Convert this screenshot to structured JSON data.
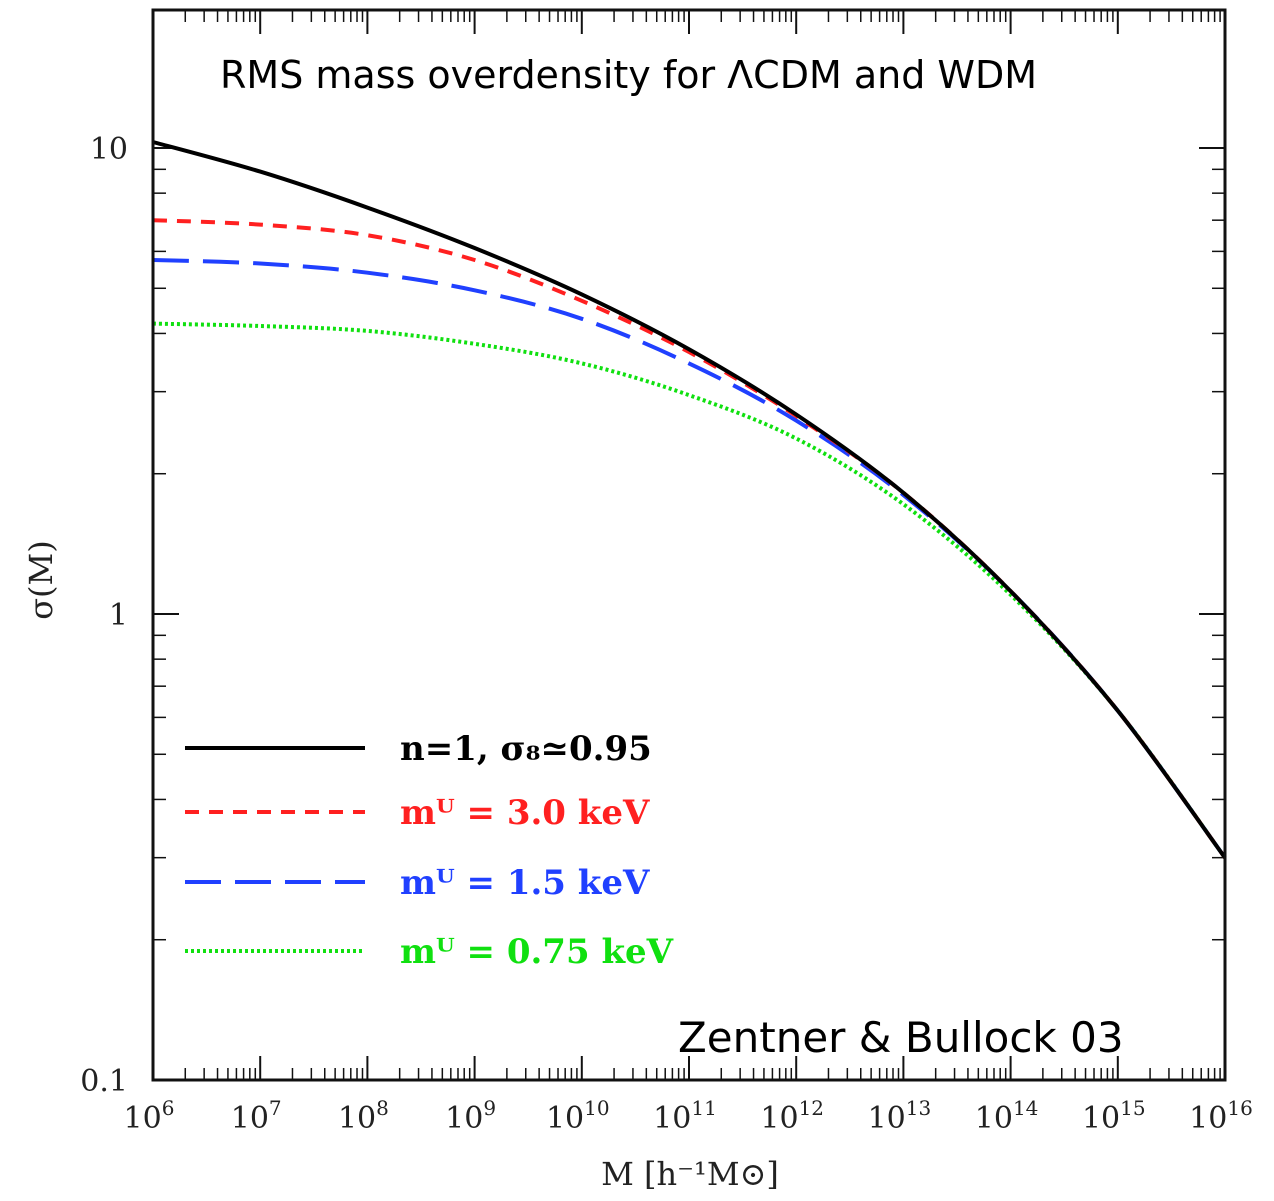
{
  "chart_data": {
    "type": "line",
    "title": "RMS mass overdensity  for ΛCDM and WDM",
    "annotation": "Zentner & Bullock 03",
    "xlabel": "M   [h⁻¹M⊙]",
    "ylabel": "σ(M)",
    "x_scale": "log",
    "y_scale": "log",
    "xlim": [
      1000000.0,
      1e+16
    ],
    "ylim": [
      0.1,
      20
    ],
    "x_ticks": [
      {
        "value": 1000000.0,
        "base": "10",
        "exp": "6"
      },
      {
        "value": 10000000.0,
        "base": "10",
        "exp": "7"
      },
      {
        "value": 100000000.0,
        "base": "10",
        "exp": "8"
      },
      {
        "value": 1000000000.0,
        "base": "10",
        "exp": "9"
      },
      {
        "value": 10000000000.0,
        "base": "10",
        "exp": "10"
      },
      {
        "value": 100000000000.0,
        "base": "10",
        "exp": "11"
      },
      {
        "value": 1000000000000.0,
        "base": "10",
        "exp": "12"
      },
      {
        "value": 10000000000000.0,
        "base": "10",
        "exp": "13"
      },
      {
        "value": 100000000000000.0,
        "base": "10",
        "exp": "14"
      },
      {
        "value": 1000000000000000.0,
        "base": "10",
        "exp": "15"
      },
      {
        "value": 1e+16,
        "base": "10",
        "exp": "16"
      }
    ],
    "y_ticks": [
      {
        "value": 10,
        "label": "10"
      },
      {
        "value": 1,
        "label": "1"
      },
      {
        "value": 0.1,
        "label": "0.1"
      }
    ],
    "legend_position": "left",
    "series": [
      {
        "name": "n=1, σ₈≃0.95",
        "color": "#000000",
        "style": "solid",
        "x": [
          1000000.0,
          10000000.0,
          100000000.0,
          1000000000.0,
          10000000000.0,
          100000000000.0,
          1000000000000.0,
          10000000000000.0,
          100000000000000.0,
          1000000000000000.0,
          1e+16
        ],
        "y": [
          10.3,
          8.9,
          7.45,
          6.1,
          4.85,
          3.7,
          2.68,
          1.82,
          1.12,
          0.62,
          0.3
        ]
      },
      {
        "name": "mᵂ = 3.0 keV",
        "color": "#ff2020",
        "style": "short-dash",
        "x": [
          1000000.0,
          10000000.0,
          100000000.0,
          1000000000.0,
          10000000000.0,
          100000000000.0,
          1000000000000.0,
          10000000000000.0,
          100000000000000.0,
          1000000000000000.0,
          1e+16
        ],
        "y": [
          7.0,
          6.85,
          6.5,
          5.75,
          4.7,
          3.65,
          2.66,
          1.82,
          1.12,
          0.62,
          0.3
        ]
      },
      {
        "name": "mᵂ = 1.5 keV",
        "color": "#2040ff",
        "style": "long-dash",
        "x": [
          1000000.0,
          10000000.0,
          100000000.0,
          1000000000.0,
          10000000000.0,
          100000000000.0,
          1000000000000.0,
          10000000000000.0,
          100000000000000.0,
          1000000000000000.0,
          1e+16
        ],
        "y": [
          5.75,
          5.65,
          5.4,
          4.95,
          4.3,
          3.45,
          2.6,
          1.8,
          1.12,
          0.62,
          0.3
        ]
      },
      {
        "name": "mᵂ = 0.75 keV",
        "color": "#10e010",
        "style": "dotted",
        "x": [
          1000000.0,
          10000000.0,
          100000000.0,
          1000000000.0,
          10000000000.0,
          100000000000.0,
          1000000000000.0,
          10000000000000.0,
          100000000000000.0,
          1000000000000000.0,
          1e+16
        ],
        "y": [
          4.2,
          4.15,
          4.05,
          3.8,
          3.45,
          2.95,
          2.38,
          1.72,
          1.1,
          0.62,
          0.3
        ]
      }
    ],
    "grid": false
  }
}
